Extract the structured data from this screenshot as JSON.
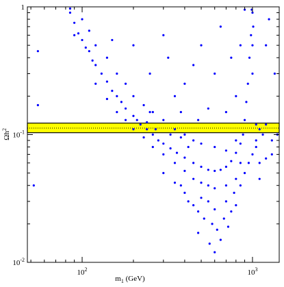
{
  "chart_data": {
    "type": "scatter",
    "xlabel": {
      "text": "m",
      "sub": "1",
      "rest": " (GeV)"
    },
    "ylabel": {
      "text": "Ωh",
      "sup": "2"
    },
    "xscale": "log",
    "yscale": "log",
    "xlim": [
      47.7,
      1435
    ],
    "ylim": [
      0.01,
      1
    ],
    "xticks": [
      {
        "value": 100,
        "label": "10",
        "exponent": "2"
      },
      {
        "value": 1000,
        "label": "10",
        "exponent": "3"
      }
    ],
    "yticks": [
      {
        "value": 0.01,
        "label": "10",
        "exponent": "-2"
      },
      {
        "value": 0.1,
        "label": "10",
        "exponent": "-1"
      },
      1
    ],
    "xminorticks": [
      50,
      60,
      70,
      80,
      90,
      200,
      300,
      400,
      500,
      600,
      700,
      800,
      900
    ],
    "yminorticks": [
      0.02,
      0.03,
      0.04,
      0.05,
      0.06,
      0.07,
      0.08,
      0.09,
      0.2,
      0.3,
      0.4,
      0.5,
      0.6,
      0.7,
      0.8,
      0.9
    ],
    "band": {
      "range": [
        0.1035,
        0.123
      ],
      "color": "#ffff00",
      "center": 0.1125
    },
    "series": [
      {
        "color": "#0000ff",
        "x": [
          85,
          90,
          95,
          100,
          105,
          110,
          115,
          120,
          130,
          140,
          150,
          160,
          170,
          180,
          200,
          220,
          240,
          260,
          280,
          300,
          330,
          360,
          400,
          450,
          500,
          550,
          600,
          650,
          700,
          750,
          800,
          850,
          880,
          900,
          920,
          940,
          960,
          980,
          1000,
          100,
          110,
          120,
          140,
          160,
          180,
          200,
          230,
          260,
          300,
          350,
          400,
          450,
          500,
          600,
          700,
          800,
          120,
          140,
          160,
          180,
          200,
          230,
          260,
          300,
          350,
          400,
          450,
          500,
          550,
          600,
          700,
          800,
          850,
          300,
          350,
          400,
          420,
          450,
          480,
          500,
          520,
          550,
          580,
          600,
          620,
          650,
          680,
          700,
          720,
          750,
          780,
          800,
          850,
          900,
          950,
          1000,
          1050,
          1100,
          1200,
          1300,
          600,
          560,
          480,
          380,
          1100,
          1050,
          1150,
          1000,
          1000,
          1010,
          990,
          1050,
          1100,
          1200,
          1300,
          1400,
          55,
          55,
          52,
          85,
          90,
          150,
          200,
          250,
          300,
          320,
          350,
          400,
          450,
          500,
          550,
          600,
          650,
          700,
          750,
          800,
          850,
          900,
          1200,
          1350,
          1250,
          480,
          380,
          250,
          210,
          240,
          270,
          330,
          380,
          420
        ],
        "values": [
          0.9,
          0.75,
          0.62,
          0.55,
          0.48,
          0.45,
          0.38,
          0.35,
          0.3,
          0.26,
          0.22,
          0.2,
          0.18,
          0.16,
          0.14,
          0.12,
          0.11,
          0.1,
          0.09,
          0.085,
          0.078,
          0.072,
          0.066,
          0.06,
          0.056,
          0.053,
          0.052,
          0.053,
          0.056,
          0.062,
          0.072,
          0.085,
          0.1,
          0.13,
          0.18,
          0.25,
          0.4,
          0.6,
          0.9,
          0.8,
          0.65,
          0.5,
          0.4,
          0.3,
          0.25,
          0.2,
          0.17,
          0.15,
          0.13,
          0.11,
          0.1,
          0.09,
          0.085,
          0.08,
          0.075,
          0.09,
          0.25,
          0.19,
          0.15,
          0.13,
          0.11,
          0.095,
          0.08,
          0.07,
          0.06,
          0.052,
          0.045,
          0.042,
          0.04,
          0.038,
          0.04,
          0.045,
          0.06,
          0.05,
          0.042,
          0.035,
          0.03,
          0.028,
          0.025,
          0.032,
          0.022,
          0.03,
          0.02,
          0.026,
          0.018,
          0.015,
          0.022,
          0.03,
          0.019,
          0.025,
          0.035,
          0.028,
          0.04,
          0.05,
          0.06,
          0.07,
          0.08,
          0.06,
          0.065,
          0.07,
          0.012,
          0.014,
          0.017,
          0.04,
          0.045,
          0.09,
          0.1,
          0.3,
          0.5,
          0.7,
          0.95,
          0.12,
          0.11,
          0.12,
          0.09,
          0.1,
          0.45,
          0.17,
          0.04,
          0.97,
          0.6,
          0.55,
          0.5,
          0.3,
          0.6,
          0.4,
          0.2,
          0.25,
          0.35,
          0.5,
          0.16,
          0.3,
          0.7,
          0.15,
          0.4,
          0.2,
          0.5,
          0.95,
          0.5,
          0.3,
          0.8,
          0.13,
          0.15,
          0.15,
          0.13,
          0.125,
          0.11,
          0.1,
          0.095,
          0.08
        ]
      }
    ]
  }
}
